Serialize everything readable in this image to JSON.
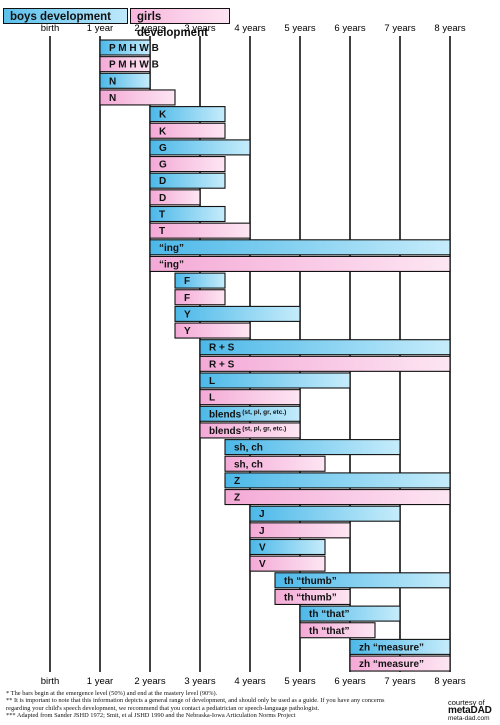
{
  "legend": {
    "boys": "boys development",
    "girls": "girls development"
  },
  "colors": {
    "boys_light": "#bfe9fb",
    "boys_dark": "#4cb8e8",
    "girls_light": "#fde4f2",
    "girls_dark": "#f4a9d6",
    "outline": "#111111"
  },
  "chart_data": {
    "type": "bar",
    "orientation": "horizontal-range",
    "x_ticks": [
      "birth",
      "1 year",
      "2 years",
      "3 years",
      "4 years",
      "5 years",
      "6 years",
      "7 years",
      "8 years"
    ],
    "xlim": [
      0,
      8
    ],
    "grid": true,
    "legend_position": "top-left",
    "series": [
      {
        "name": "boys development",
        "color": "boys"
      },
      {
        "name": "girls development",
        "color": "girls"
      }
    ],
    "bars": [
      {
        "label": "P M H W B",
        "series": "boys",
        "start": 1,
        "end": 2
      },
      {
        "label": "P M H W B",
        "series": "girls",
        "start": 1,
        "end": 2
      },
      {
        "label": "N",
        "series": "boys",
        "start": 1,
        "end": 2
      },
      {
        "label": "N",
        "series": "girls",
        "start": 1,
        "end": 2.5
      },
      {
        "label": "K",
        "series": "boys",
        "start": 2,
        "end": 3.5
      },
      {
        "label": "K",
        "series": "girls",
        "start": 2,
        "end": 3.5
      },
      {
        "label": "G",
        "series": "boys",
        "start": 2,
        "end": 4
      },
      {
        "label": "G",
        "series": "girls",
        "start": 2,
        "end": 3.5
      },
      {
        "label": "D",
        "series": "boys",
        "start": 2,
        "end": 3.5
      },
      {
        "label": "D",
        "series": "girls",
        "start": 2,
        "end": 3
      },
      {
        "label": "T",
        "series": "boys",
        "start": 2,
        "end": 3.5
      },
      {
        "label": "T",
        "series": "girls",
        "start": 2,
        "end": 4
      },
      {
        "label": "“ing”",
        "series": "boys",
        "start": 2,
        "end": 8
      },
      {
        "label": "“ing”",
        "series": "girls",
        "start": 2,
        "end": 8
      },
      {
        "label": "F",
        "series": "boys",
        "start": 2.5,
        "end": 3.5
      },
      {
        "label": "F",
        "series": "girls",
        "start": 2.5,
        "end": 3.5
      },
      {
        "label": "Y",
        "series": "boys",
        "start": 2.5,
        "end": 5
      },
      {
        "label": "Y",
        "series": "girls",
        "start": 2.5,
        "end": 4
      },
      {
        "label": "R + S",
        "series": "boys",
        "start": 3,
        "end": 8
      },
      {
        "label": "R + S",
        "series": "girls",
        "start": 3,
        "end": 8
      },
      {
        "label": "L",
        "series": "boys",
        "start": 3,
        "end": 6
      },
      {
        "label": "L",
        "series": "girls",
        "start": 3,
        "end": 5
      },
      {
        "label": "blends",
        "sup": "(st, pl, gr, etc.)",
        "series": "boys",
        "start": 3,
        "end": 5
      },
      {
        "label": "blends",
        "sup": "(st, pl, gr, etc.)",
        "series": "girls",
        "start": 3,
        "end": 5
      },
      {
        "label": "sh, ch",
        "series": "boys",
        "start": 3.5,
        "end": 7
      },
      {
        "label": "sh, ch",
        "series": "girls",
        "start": 3.5,
        "end": 5.5
      },
      {
        "label": "Z",
        "series": "boys",
        "start": 3.5,
        "end": 8
      },
      {
        "label": "Z",
        "series": "girls",
        "start": 3.5,
        "end": 8
      },
      {
        "label": "J",
        "series": "boys",
        "start": 4,
        "end": 7
      },
      {
        "label": "J",
        "series": "girls",
        "start": 4,
        "end": 6
      },
      {
        "label": "V",
        "series": "boys",
        "start": 4,
        "end": 5.5
      },
      {
        "label": "V",
        "series": "girls",
        "start": 4,
        "end": 5.5
      },
      {
        "label": "th “thumb”",
        "series": "boys",
        "start": 4.5,
        "end": 8
      },
      {
        "label": "th “thumb”",
        "series": "girls",
        "start": 4.5,
        "end": 6
      },
      {
        "label": "th “that”",
        "series": "boys",
        "start": 5,
        "end": 7
      },
      {
        "label": "th “that”",
        "series": "girls",
        "start": 5,
        "end": 6.5
      },
      {
        "label": "zh “measure”",
        "series": "boys",
        "start": 6,
        "end": 8
      },
      {
        "label": "zh “measure”",
        "series": "girls",
        "start": 6,
        "end": 8
      }
    ]
  },
  "footnotes": [
    "* The bars begin at the emergence level (50%) and end at the mastery level (90%).",
    "** It is important to note that this information depicts a general range of development, and should only be used as a guide. If you have any concerns",
    "regarding your child's speech development, we recommend that you contact a pediatrician or speech-language pathologist.",
    "*** Adapted from Sander JSHD 1972; Smit, et al JSHD 1990 and the Nebraska-Iowa Articulation Norms Project"
  ],
  "credit": {
    "line1": "courtesy of",
    "brand": "metaDAD",
    "site": "meta-dad.com"
  }
}
